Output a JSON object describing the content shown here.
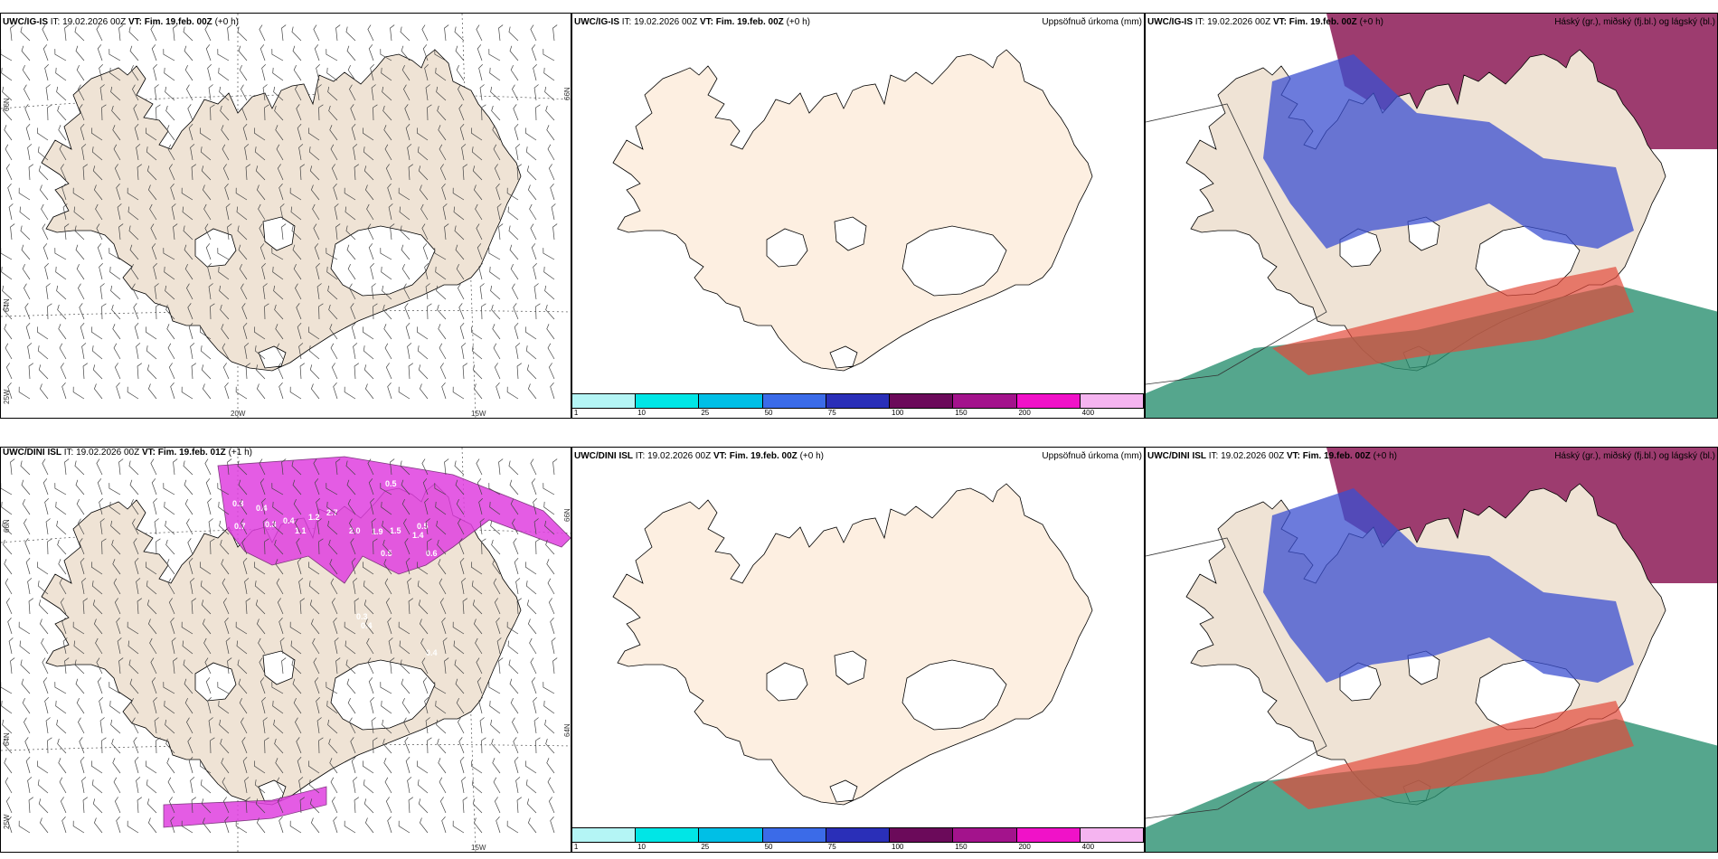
{
  "panels": {
    "top_left": {
      "model": "UWC/IG-IS",
      "it": "IT: 19.02.2026 00Z",
      "vt_label": "VT:",
      "vt_value": "Fim. 19.feb. 00Z",
      "lead": "(+0 h)",
      "lat_labels": [
        "66N",
        "64N",
        "25W"
      ],
      "lon_labels": [
        "20W",
        "15W"
      ],
      "lat_right": [
        "66N",
        "64N"
      ]
    },
    "top_mid": {
      "model": "UWC/IG-IS",
      "it": "IT: 19.02.2026 00Z",
      "vt_label": "VT:",
      "vt_value": "Fim. 19.feb. 00Z",
      "lead": "(+0 h)",
      "right_title": "Uppsöfnuð úrkoma (mm)"
    },
    "top_right": {
      "model": "UWC/IG-IS",
      "it": "IT: 19.02.2026 00Z",
      "vt_label": "VT:",
      "vt_value": "Fim. 19.feb. 00Z",
      "lead": "(+0 h)",
      "right_title": "Háský (gr.), miðský (fj.bl.) og lágský (bl.)"
    },
    "bottom_left": {
      "model": "UWC/DINI ISL",
      "it": "IT: 19.02.2026 00Z",
      "vt_label": "VT:",
      "vt_value": "Fim. 19.feb. 01Z",
      "lead": "(+1 h)",
      "lat_labels": [
        "66N",
        "64N",
        "25W"
      ],
      "lon_labels": [
        "15W"
      ],
      "lat_right": [
        "66N",
        "64N"
      ],
      "values": [
        "0.3",
        "0.4",
        "0.5",
        "0.7",
        "0.3",
        "0.4",
        "1.1",
        "1.2",
        "2.7",
        "2.0",
        "1.9",
        "1.4",
        "0.5",
        "0.5",
        "0.6",
        "0.5",
        "0.3",
        "1.5",
        "0.4",
        "0.4",
        "0.3",
        "0.5",
        "0.5",
        "0.4"
      ]
    },
    "bottom_mid": {
      "model": "UWC/DINI ISL",
      "it": "IT: 19.02.2026 00Z",
      "vt_label": "VT:",
      "vt_value": "Fim. 19.feb. 00Z",
      "lead": "(+0 h)",
      "right_title": "Uppsöfnuð úrkoma (mm)"
    },
    "bottom_right": {
      "model": "UWC/DINI ISL",
      "it": "IT: 19.02.2026 00Z",
      "vt_label": "VT:",
      "vt_value": "Fim. 19.feb. 00Z",
      "lead": "(+0 h)",
      "right_title": "Háský (gr.), miðský (fj.bl.) og lágský (bl.)"
    }
  },
  "colorbar": {
    "labels": [
      "1",
      "10",
      "25",
      "50",
      "75",
      "100",
      "150",
      "200",
      "400"
    ],
    "colors": [
      "#b4f5f5",
      "#00e6e6",
      "#00bfe6",
      "#3b6be8",
      "#2a2fb8",
      "#6b0a5a",
      "#a3138c",
      "#f012c8",
      "#f5b4f0"
    ]
  },
  "colors": {
    "land": "#efe3d5",
    "land_mid": "#fdefe1",
    "cloud_high": "#8c1a56",
    "cloud_mid": "#3b4fd0",
    "cloud_low": "#2a9070",
    "precip": "#e040e0"
  }
}
